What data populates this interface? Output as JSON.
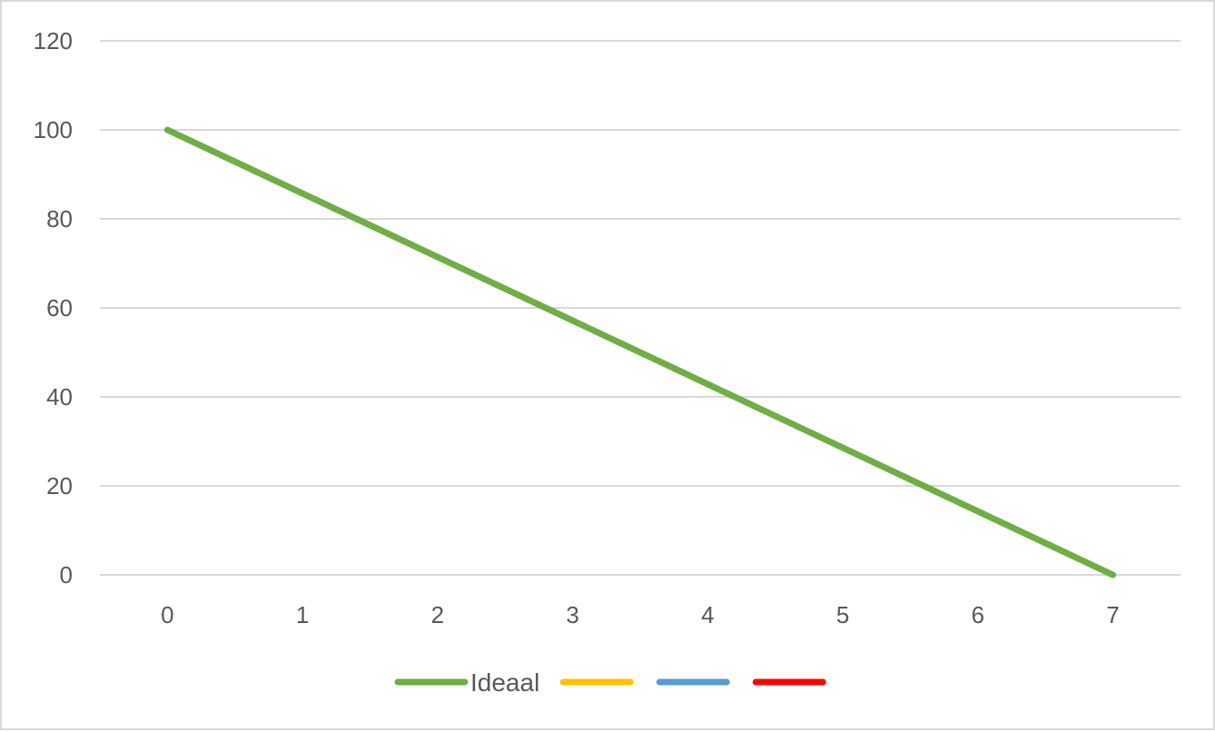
{
  "chart_data": {
    "type": "line",
    "title": "",
    "xlabel": "",
    "ylabel": "",
    "x": [
      0,
      1,
      2,
      3,
      4,
      5,
      6,
      7
    ],
    "xlim": [
      -0.5,
      7.5
    ],
    "ylim": [
      0,
      120
    ],
    "yticks": [
      0,
      20,
      40,
      60,
      80,
      100,
      120
    ],
    "xticks": [
      0,
      1,
      2,
      3,
      4,
      5,
      6,
      7
    ],
    "grid": "horizontal",
    "legend_position": "bottom",
    "series": [
      {
        "name": "Ideaal",
        "color": "#70ad47",
        "points": [
          [
            0,
            100
          ],
          [
            7,
            0
          ]
        ]
      },
      {
        "name": "",
        "color": "#ffc000",
        "points": []
      },
      {
        "name": "",
        "color": "#5b9bd5",
        "points": []
      },
      {
        "name": "",
        "color": "#ff0000",
        "points": []
      }
    ]
  }
}
